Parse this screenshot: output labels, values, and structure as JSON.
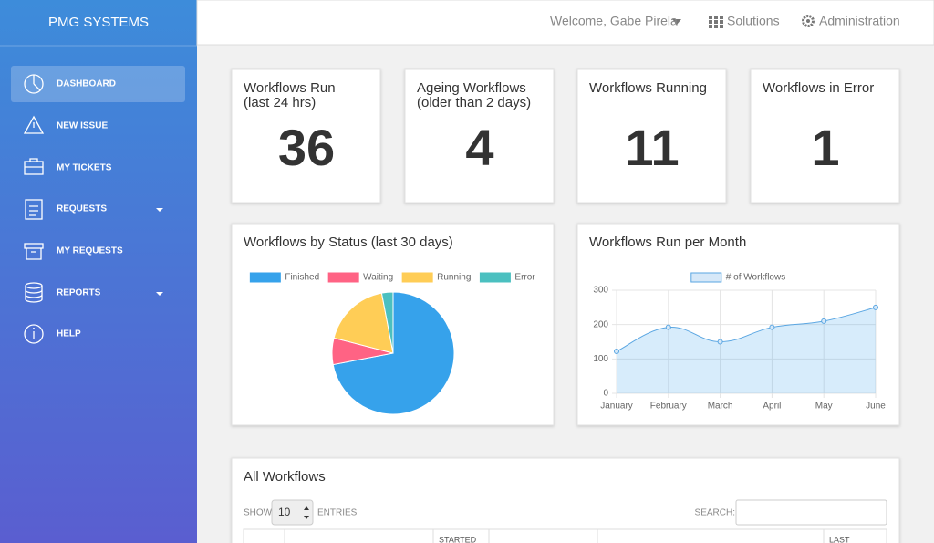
{
  "sidebar": {
    "brand": "PMG SYSTEMS",
    "items": [
      "DASHBOARD",
      "NEW ISSUE",
      "MY TICKETS",
      "REQUESTS",
      "MY REQUESTS",
      "REPORTS",
      "HELP"
    ]
  },
  "topbar": {
    "user": "Welcome, Gabe Pirela",
    "links": [
      "Solutions",
      "Administration"
    ]
  },
  "stats": [
    {
      "title": [
        "Workflows Run",
        "(last 24 hrs)"
      ],
      "value": 36
    },
    {
      "title": [
        "Ageing Workflows",
        "(older than 2 days)"
      ],
      "value": 4
    },
    {
      "title": [
        "Workflows Running"
      ],
      "value": 11
    },
    {
      "title": [
        "Workflows in Error"
      ],
      "value": 1
    }
  ],
  "chart_data": [
    {
      "type": "pie",
      "title": "Workflows by Status (last 30 days)",
      "categories": [
        "Finished",
        "Waiting",
        "Running",
        "Error"
      ],
      "values": [
        72,
        7,
        18,
        3
      ],
      "colors": [
        "#36a2eb",
        "#ff6384",
        "#ffcd56",
        "#4bc0c0"
      ],
      "legend": "top"
    },
    {
      "type": "line",
      "title": "Workflows Run per Month",
      "categories": [
        "January",
        "February",
        "March",
        "April",
        "May",
        "June"
      ],
      "series": [
        {
          "name": "# of Workflows",
          "color": "#5aa6e2",
          "values": [
            122,
            192,
            150,
            192,
            210,
            250
          ]
        }
      ],
      "ylim": [
        0,
        300
      ],
      "yticks": [
        0,
        100,
        200,
        300
      ],
      "grid": true,
      "fill": true,
      "legend": "top"
    }
  ],
  "table": {
    "title": "All Workflows",
    "length_label": [
      "SHOW",
      "ENTRIES"
    ],
    "length_value": 10,
    "search_label": "SEARCH:",
    "headers": [
      "STARTED",
      "LAST"
    ]
  }
}
